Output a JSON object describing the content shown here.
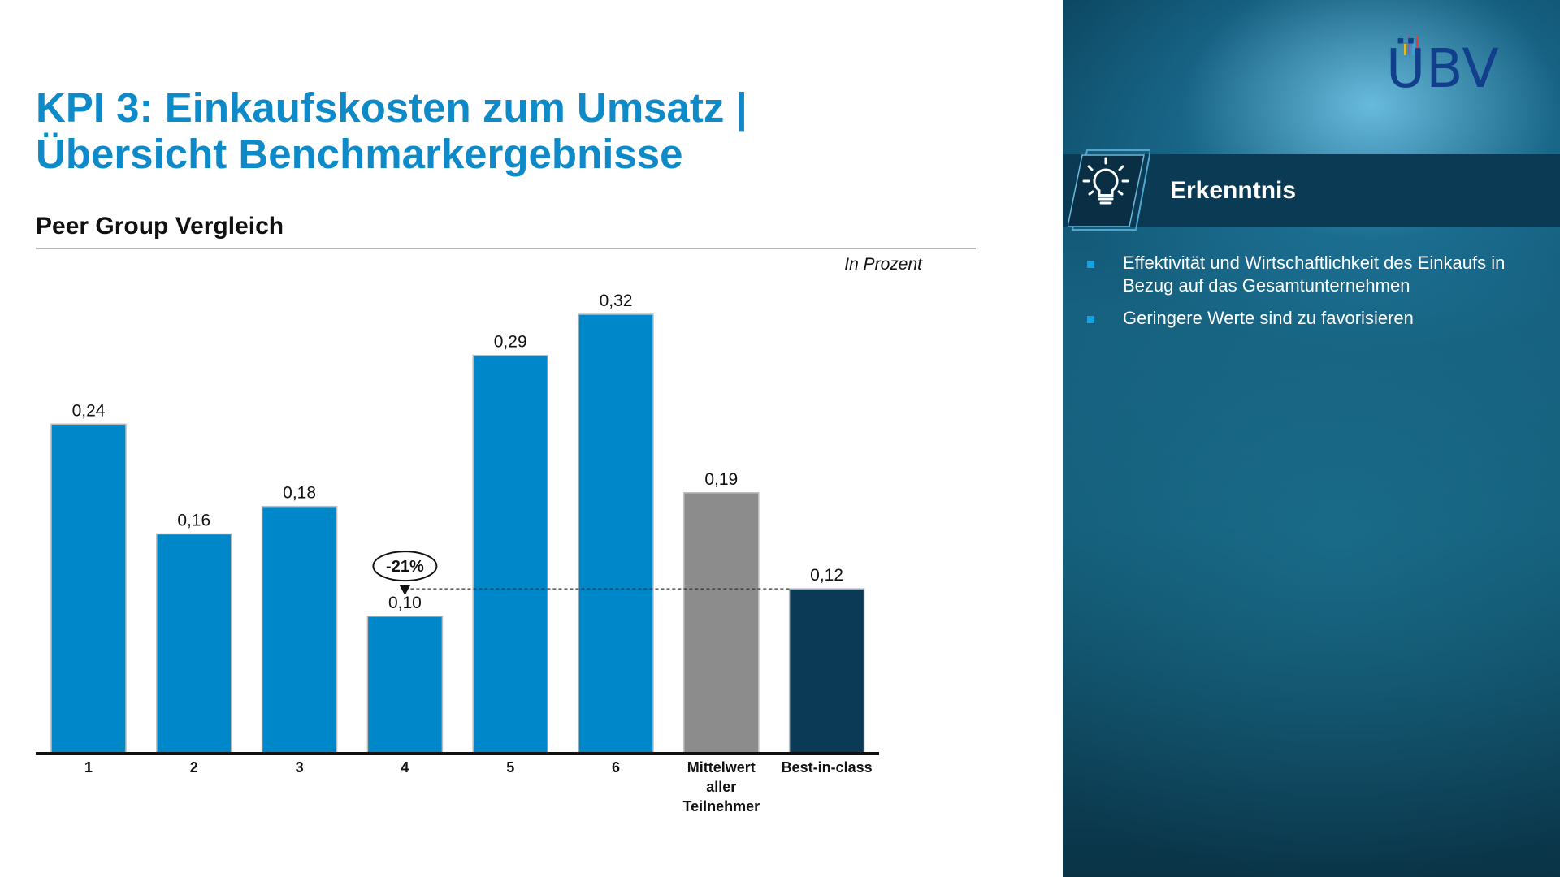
{
  "title": {
    "line1": "KPI 3: Einkaufskosten zum Umsatz |",
    "line2": "Übersicht Benchmarkergebnisse"
  },
  "subtitle": "Peer Group Vergleich",
  "unit_label": "In Prozent",
  "chart_data": {
    "type": "bar",
    "title": "Peer Group Vergleich",
    "xlabel": "",
    "ylabel": "In Prozent",
    "categories": [
      "1",
      "2",
      "3",
      "4",
      "5",
      "6",
      "Mittelwert aller Teilnehmer",
      "Best-in-class"
    ],
    "values": [
      0.24,
      0.16,
      0.18,
      0.1,
      0.29,
      0.32,
      0.19,
      0.12
    ],
    "value_labels": [
      "0,24",
      "0,16",
      "0,18",
      "0,10",
      "0,29",
      "0,32",
      "0,19",
      "0,12"
    ],
    "bar_colors": [
      "#0087c9",
      "#0087c9",
      "#0087c9",
      "#0087c9",
      "#0087c9",
      "#0087c9",
      "#8c8c8c",
      "#0a3a55"
    ],
    "ylim": [
      0,
      0.35
    ],
    "grid": false,
    "annotation": {
      "text": "-21%",
      "from_category": "4",
      "reference_category": "Best-in-class",
      "reference_value": 0.12
    }
  },
  "logo": {
    "text": "ÜBV",
    "text_color": "#123f8c",
    "bar_colors": [
      "#e2bd2b",
      "#9b57a8",
      "#3e9fd8",
      "#d7433f"
    ]
  },
  "insight": {
    "icon": "lightbulb-icon",
    "heading": "Erkenntnis",
    "bullets": [
      "Effektivität und Wirtschaftlichkeit des Einkaufs in Bezug auf das Gesamtunternehmen",
      "Geringere Werte sind zu favorisieren"
    ]
  }
}
